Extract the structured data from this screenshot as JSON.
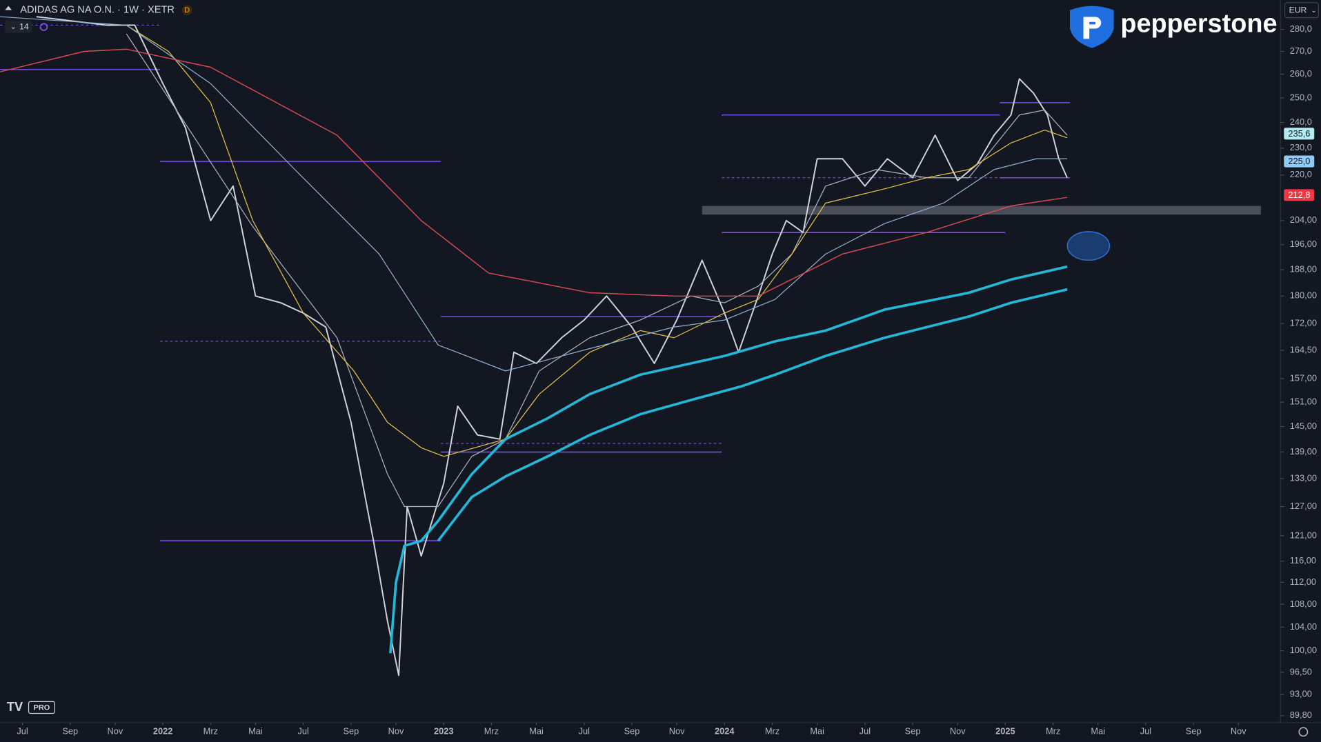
{
  "chart_data": {
    "type": "line",
    "title": "ADIDAS AG NA O.N. · 1W · XETR",
    "interval_badge": "D",
    "indicator_count": 14,
    "currency": "EUR",
    "brand": "pepperstone",
    "platform_badge": "PRO",
    "log_scale": true,
    "grid": false,
    "xlim": [
      2021.42,
      2025.98
    ],
    "ylim": [
      88.9,
      294
    ],
    "xticks": [
      {
        "value": 2021.5,
        "label": "Jul"
      },
      {
        "value": 2021.67,
        "label": "Sep"
      },
      {
        "value": 2021.83,
        "label": "Nov"
      },
      2022,
      {
        "value": 2022.17,
        "label": "Mrz"
      },
      {
        "value": 2022.33,
        "label": "Mai"
      },
      {
        "value": 2022.5,
        "label": "Jul"
      },
      {
        "value": 2022.67,
        "label": "Sep"
      },
      {
        "value": 2022.83,
        "label": "Nov"
      },
      2023,
      {
        "value": 2023.17,
        "label": "Mrz"
      },
      {
        "value": 2023.33,
        "label": "Mai"
      },
      {
        "value": 2023.5,
        "label": "Jul"
      },
      {
        "value": 2023.67,
        "label": "Sep"
      },
      {
        "value": 2023.83,
        "label": "Nov"
      },
      2024,
      {
        "value": 2024.17,
        "label": "Mrz"
      },
      {
        "value": 2024.33,
        "label": "Mai"
      },
      {
        "value": 2024.5,
        "label": "Jul"
      },
      {
        "value": 2024.67,
        "label": "Sep"
      },
      {
        "value": 2024.83,
        "label": "Nov"
      },
      2025,
      {
        "value": 2025.17,
        "label": "Mrz"
      },
      {
        "value": 2025.33,
        "label": "Mai"
      },
      {
        "value": 2025.5,
        "label": "Jul"
      },
      {
        "value": 2025.67,
        "label": "Sep"
      },
      {
        "value": 2025.83,
        "label": "Nov"
      }
    ],
    "yticks": [
      {
        "value": 280,
        "label": "280,0"
      },
      {
        "value": 270,
        "label": "270,0"
      },
      {
        "value": 260,
        "label": "260,0"
      },
      {
        "value": 250,
        "label": "250,0"
      },
      {
        "value": 240,
        "label": "240,0"
      },
      {
        "value": 230,
        "label": "230,0"
      },
      {
        "value": 220,
        "label": "220,0"
      },
      {
        "value": 204,
        "label": "204,00"
      },
      {
        "value": 196,
        "label": "196,00"
      },
      {
        "value": 188,
        "label": "188,00"
      },
      {
        "value": 180,
        "label": "180,00"
      },
      {
        "value": 172,
        "label": "172,00"
      },
      {
        "value": 164.5,
        "label": "164,50"
      },
      {
        "value": 157,
        "label": "157,00"
      },
      {
        "value": 151,
        "label": "151,00"
      },
      {
        "value": 145,
        "label": "145,00"
      },
      {
        "value": 139,
        "label": "139,00"
      },
      {
        "value": 133,
        "label": "133,00"
      },
      {
        "value": 127,
        "label": "127,00"
      },
      {
        "value": 121,
        "label": "121,00"
      },
      {
        "value": 116,
        "label": "116,00"
      },
      {
        "value": 112,
        "label": "112,00"
      },
      {
        "value": 108,
        "label": "108,00"
      },
      {
        "value": 104,
        "label": "104,00"
      },
      {
        "value": 100,
        "label": "100,00"
      },
      {
        "value": 96.5,
        "label": "96,50"
      },
      {
        "value": 93,
        "label": "93,00"
      },
      {
        "value": 89.8,
        "label": "89,80"
      }
    ],
    "series": [
      {
        "color": "#d1d4dc",
        "line_width": 1.6,
        "x": [
          2021.55,
          2021.8,
          2021.9,
          2022.0,
          2022.08,
          2022.17,
          2022.25,
          2022.33,
          2022.42,
          2022.5,
          2022.58,
          2022.67,
          2022.75,
          2022.8,
          2022.84,
          2022.87,
          2022.92,
          2023.0,
          2023.05,
          2023.12,
          2023.2,
          2023.25,
          2023.33,
          2023.42,
          2023.5,
          2023.58,
          2023.67,
          2023.75,
          2023.83,
          2023.92,
          2024.0,
          2024.05,
          2024.12,
          2024.17,
          2024.22,
          2024.28,
          2024.33,
          2024.42,
          2024.5,
          2024.58,
          2024.67,
          2024.75,
          2024.83,
          2024.9,
          2024.96,
          2025.02,
          2025.05,
          2025.1,
          2025.15,
          2025.19,
          2025.22
        ],
        "values": [
          286,
          282,
          282,
          256,
          238,
          204,
          216,
          180,
          178,
          175,
          171,
          146,
          120,
          105,
          96,
          127,
          117,
          132,
          150,
          143,
          142,
          164,
          161,
          168,
          173,
          180,
          171,
          161,
          173,
          191,
          175,
          164,
          180,
          193,
          204,
          200,
          226,
          226,
          216,
          226,
          219,
          235,
          218,
          224,
          235,
          243,
          258,
          252,
          243,
          226,
          219
        ]
      },
      {
        "color": "#aeb3bf",
        "line_width": 1,
        "x": [
          2021.87,
          2022.32,
          2022.62,
          2022.8,
          2022.86,
          2022.98,
          2023.1,
          2023.22,
          2023.34,
          2023.52,
          2023.7,
          2023.88,
          2024.0,
          2024.12,
          2024.24,
          2024.36,
          2024.54,
          2024.72,
          2024.87,
          2025.05,
          2025.14,
          2025.22
        ],
        "values": [
          278,
          202,
          168,
          134,
          127,
          127,
          138,
          142,
          159,
          168,
          173,
          180,
          178,
          183,
          193,
          216,
          222,
          219,
          219,
          243,
          245,
          235
        ]
      },
      {
        "color": "#e8c547",
        "line_width": 1,
        "x": [
          2021.87,
          2022.02,
          2022.17,
          2022.32,
          2022.5,
          2022.68,
          2022.8,
          2022.92,
          2023.0,
          2023.22,
          2023.34,
          2023.52,
          2023.7,
          2023.82,
          2024.0,
          2024.12,
          2024.24,
          2024.36,
          2024.57,
          2024.72,
          2024.87,
          2025.02,
          2025.14,
          2025.22
        ],
        "values": [
          282,
          270,
          248,
          204,
          175,
          159,
          146,
          140,
          138,
          142,
          153,
          164,
          170,
          168,
          175,
          179,
          193,
          210,
          215,
          219,
          222,
          232,
          237,
          234
        ]
      },
      {
        "color": "#8fb3cf",
        "line_width": 1,
        "x": [
          2021.42,
          2021.87,
          2022.17,
          2022.47,
          2022.77,
          2022.98,
          2023.22,
          2023.52,
          2023.82,
          2024.0,
          2024.18,
          2024.36,
          2024.57,
          2024.78,
          2024.96,
          2025.11,
          2025.22
        ],
        "values": [
          286,
          282,
          256,
          222,
          193,
          166,
          159,
          165,
          171,
          173,
          179,
          193,
          203,
          210,
          222,
          226,
          226
        ]
      },
      {
        "color": "#d94a52",
        "line_width": 1.2,
        "x": [
          2021.42,
          2021.72,
          2021.87,
          2022.17,
          2022.62,
          2022.92,
          2023.16,
          2023.52,
          2023.82,
          2024.12,
          2024.42,
          2024.72,
          2025.02,
          2025.22
        ],
        "values": [
          261,
          270,
          271,
          263,
          235,
          204,
          187,
          181,
          180,
          180,
          193,
          200,
          209,
          212
        ]
      },
      {
        "color": "#22b8d8",
        "line_width": 3,
        "x": [
          2022.81,
          2022.83,
          2022.86,
          2022.92,
          2022.98,
          2023.1,
          2023.22,
          2023.37,
          2023.52,
          2023.7,
          2023.88,
          2024.0,
          2024.18,
          2024.36,
          2024.57,
          2024.87,
          2025.02,
          2025.22
        ],
        "values": [
          99.6,
          112,
          119,
          120,
          124,
          134,
          142,
          147,
          153,
          158,
          161,
          163,
          167,
          170,
          176,
          181,
          185,
          189
        ]
      },
      {
        "color": "#22b8d8",
        "line_width": 3,
        "x": [
          2022.98,
          2023.1,
          2023.22,
          2023.37,
          2023.52,
          2023.7,
          2023.88,
          2024.06,
          2024.18,
          2024.36,
          2024.57,
          2024.87,
          2025.02,
          2025.22
        ],
        "values": [
          120,
          129,
          133.5,
          138,
          143,
          148,
          151.5,
          155,
          158,
          163,
          168,
          174,
          178,
          182
        ]
      }
    ],
    "hlines": [
      {
        "y": 262,
        "x": [
          2021.42,
          2021.99
        ],
        "color": "#7b4fe0",
        "dashed": false
      },
      {
        "y": 282,
        "x": [
          2021.42,
          2021.99
        ],
        "color": "#7b4fe0",
        "dashed": true
      },
      {
        "y": 225,
        "x": [
          2021.99,
          2022.99
        ],
        "color": "#7b4fe0",
        "dashed": false
      },
      {
        "y": 167,
        "x": [
          2021.99,
          2022.99
        ],
        "color": "#7b4fe0",
        "dashed": true
      },
      {
        "y": 120,
        "x": [
          2021.99,
          2022.99
        ],
        "color": "#7b4fe0",
        "dashed": false
      },
      {
        "y": 174,
        "x": [
          2022.99,
          2023.99
        ],
        "color": "#7b4fe0",
        "dashed": false
      },
      {
        "y": 141,
        "x": [
          2022.99,
          2023.99
        ],
        "color": "#7b4fe0",
        "dashed": true
      },
      {
        "y": 139,
        "x": [
          2022.99,
          2023.99
        ],
        "color": "#7b4fe0",
        "dashed": false
      },
      {
        "y": 243,
        "x": [
          2023.99,
          2024.98
        ],
        "color": "#7b4fe0",
        "dashed": false
      },
      {
        "y": 219,
        "x": [
          2023.99,
          2024.98
        ],
        "color": "#7b4fe0",
        "dashed": true
      },
      {
        "y": 200,
        "x": [
          2023.99,
          2025.0
        ],
        "color": "#7b4fe0",
        "dashed": false
      },
      {
        "y": 248,
        "x": [
          2024.98,
          2025.23
        ],
        "color": "#7b4fe0",
        "dashed": false
      },
      {
        "y": 219,
        "x": [
          2024.98,
          2025.23
        ],
        "color": "#7b4fe0",
        "dashed": false
      }
    ],
    "band": {
      "y": [
        209,
        206
      ],
      "x": [
        2023.92,
        2025.91
      ],
      "color": "#787b86"
    },
    "price_labels": [
      {
        "value": 235.6,
        "label": "235,6",
        "color": "#b2ebf2",
        "text_color": "#131722"
      },
      {
        "value": 225.0,
        "label": "225,0",
        "color": "#90caf9",
        "text_color": "#131722"
      },
      {
        "value": 212.8,
        "label": "212,8",
        "color": "#f23645",
        "text_color": "#ffffff"
      }
    ]
  }
}
